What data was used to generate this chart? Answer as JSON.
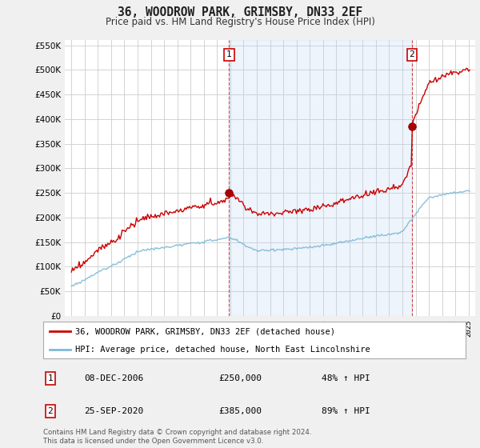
{
  "title": "36, WOODROW PARK, GRIMSBY, DN33 2EF",
  "subtitle": "Price paid vs. HM Land Registry's House Price Index (HPI)",
  "legend_line1": "36, WOODROW PARK, GRIMSBY, DN33 2EF (detached house)",
  "legend_line2": "HPI: Average price, detached house, North East Lincolnshire",
  "footnote": "Contains HM Land Registry data © Crown copyright and database right 2024.\nThis data is licensed under the Open Government Licence v3.0.",
  "sale1_date": "08-DEC-2006",
  "sale1_price": "£250,000",
  "sale1_hpi": "48% ↑ HPI",
  "sale2_date": "25-SEP-2020",
  "sale2_price": "£385,000",
  "sale2_hpi": "89% ↑ HPI",
  "hpi_color": "#7db9d8",
  "price_color": "#cc0000",
  "background_color": "#f0f0f0",
  "chart_bg": "#ffffff",
  "shade_color": "#ddeeff",
  "grid_color": "#cccccc",
  "sale1_x": 2006.917,
  "sale1_y": 250000,
  "sale2_x": 2020.708,
  "sale2_y": 385000,
  "xlim": [
    1994.5,
    2025.5
  ],
  "ylim": [
    0,
    560000
  ],
  "yticks": [
    0,
    50000,
    100000,
    150000,
    200000,
    250000,
    300000,
    350000,
    400000,
    450000,
    500000,
    550000
  ]
}
